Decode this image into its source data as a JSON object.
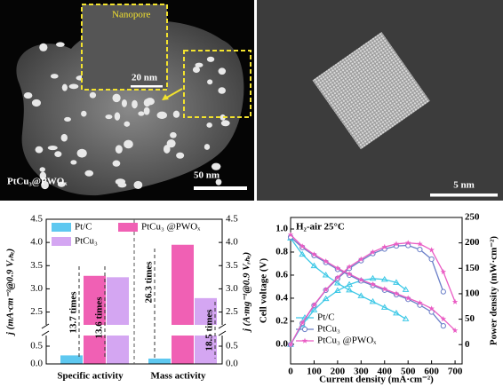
{
  "images": [
    {
      "inset_label": "Nanopore",
      "inset_scale": "20 nm",
      "label": "PtCu₃@PWOₓ",
      "scale": "50 nm"
    },
    {
      "scale": "5 nm"
    }
  ],
  "chart_data": [
    {
      "type": "bar",
      "ylabel": "j (mA·cm⁻²@0.9 Vᵣₕₑ)",
      "y2label": "j (A·mg⁻¹@0.9 Vᵣₕₑ)",
      "categories": [
        "Specific activity",
        "Mass activity"
      ],
      "series": [
        {
          "name": "Pt/C",
          "color": "#5ec8f0",
          "values": [
            0.24,
            0.15
          ]
        },
        {
          "name": "PtCu₃ @PWOₓ",
          "color": "#f060b4",
          "values": [
            3.28,
            3.95
          ]
        },
        {
          "name": "PtCu₃",
          "color": "#d4a6f2",
          "values": [
            3.25,
            2.8
          ]
        }
      ],
      "ylim": [
        0,
        4.5
      ],
      "ybreak": [
        0.7,
        2.3
      ],
      "yticks": [
        {
          "value": 0,
          "label": "0.0"
        },
        0.5,
        2.5,
        {
          "value": 3,
          "label": "3.0"
        },
        3.5,
        {
          "value": 4,
          "label": "4.0"
        },
        4.5
      ],
      "y2lim": [
        0,
        4.5
      ],
      "y2break": [
        0.7,
        2.3
      ],
      "y2ticks": [
        {
          "value": 0,
          "label": "0.0"
        },
        0.5,
        2.5,
        {
          "value": 3,
          "label": "3.0"
        },
        3.5,
        {
          "value": 4,
          "label": "4.0"
        },
        4.5
      ],
      "annotations": [
        "13.7 times",
        "13.6 times",
        "26.3 times",
        "18.5 times"
      ]
    },
    {
      "type": "line",
      "annotation": "H₂-air  25°C",
      "xlabel": "Current density (mA·cm⁻²)",
      "ylabel": "Cell voltage (V)",
      "y2label": "Power density (mW·cm⁻²)",
      "xlim": [
        0,
        730
      ],
      "xticks": [
        0,
        100,
        200,
        300,
        400,
        500,
        600,
        700
      ],
      "ylim": [
        -0.17,
        1.1
      ],
      "yticks": [
        {
          "value": 0,
          "label": "0.0"
        },
        0.2,
        0.4,
        0.6,
        0.8,
        {
          "value": 1,
          "label": "1.0"
        }
      ],
      "y2lim": [
        -38,
        250
      ],
      "y2ticks": [
        0,
        50,
        100,
        150,
        200,
        250
      ],
      "series": [
        {
          "name": "Pt/C",
          "color": "#3cc8e6",
          "marker": "triangle",
          "x": [
            0,
            50,
            100,
            150,
            200,
            250,
            300,
            350,
            400,
            450,
            490
          ],
          "voltage": [
            0.92,
            0.78,
            0.68,
            0.6,
            0.53,
            0.47,
            0.42,
            0.37,
            0.32,
            0.27,
            0.22
          ],
          "power": [
            0,
            39,
            68,
            90,
            106,
            118,
            126,
            130,
            128,
            122,
            108
          ]
        },
        {
          "name": "PtCu₃",
          "color": "#6a7fc8",
          "marker": "circle",
          "x": [
            0,
            50,
            100,
            150,
            200,
            250,
            300,
            350,
            400,
            450,
            500,
            550,
            600,
            650
          ],
          "voltage": [
            0.93,
            0.84,
            0.77,
            0.71,
            0.65,
            0.6,
            0.55,
            0.51,
            0.47,
            0.43,
            0.39,
            0.34,
            0.28,
            0.16
          ],
          "power": [
            0,
            42,
            77,
            107,
            130,
            150,
            165,
            179,
            188,
            194,
            195,
            187,
            168,
            104
          ]
        },
        {
          "name": "PtCu₃ @PWOₓ",
          "color": "#ea5cc4",
          "marker": "star",
          "x": [
            0,
            50,
            100,
            150,
            200,
            250,
            300,
            350,
            400,
            450,
            500,
            550,
            600,
            650,
            700
          ],
          "voltage": [
            0.95,
            0.85,
            0.78,
            0.72,
            0.66,
            0.61,
            0.56,
            0.52,
            0.48,
            0.44,
            0.4,
            0.36,
            0.31,
            0.22,
            0.12
          ],
          "power": [
            0,
            43,
            78,
            108,
            132,
            153,
            168,
            182,
            192,
            198,
            200,
            198,
            186,
            143,
            84
          ]
        }
      ]
    }
  ]
}
